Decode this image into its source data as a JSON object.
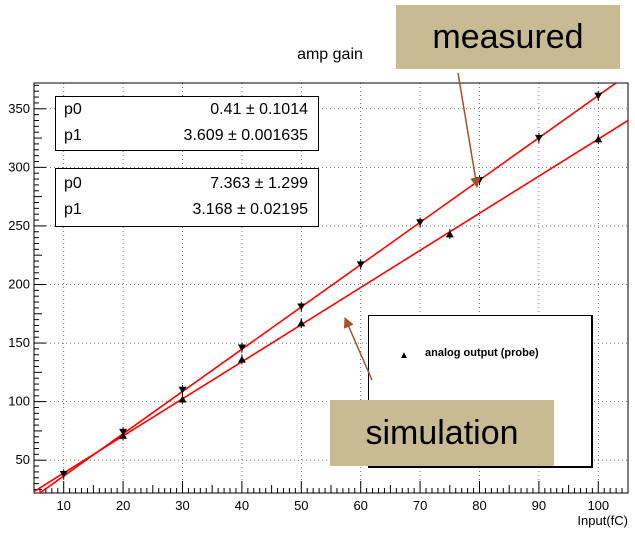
{
  "chart_data": {
    "type": "scatter",
    "title": "amp gain",
    "xlabel": "Input(fC)",
    "ylabel": "",
    "xlim": [
      5,
      105
    ],
    "ylim": [
      22,
      372
    ],
    "x_ticks": [
      10,
      20,
      30,
      40,
      50,
      60,
      70,
      80,
      90,
      100
    ],
    "y_ticks": [
      50,
      100,
      150,
      200,
      250,
      300,
      350
    ],
    "grid": true,
    "legend_position": "center-right",
    "series": [
      {
        "marker": "triangle-down",
        "color": "#000000",
        "points": [
          {
            "x": 10,
            "y": 38
          },
          {
            "x": 20,
            "y": 74
          },
          {
            "x": 30,
            "y": 110
          },
          {
            "x": 40,
            "y": 146
          },
          {
            "x": 50,
            "y": 181
          },
          {
            "x": 60,
            "y": 217
          },
          {
            "x": 70,
            "y": 253
          },
          {
            "x": 80,
            "y": 289
          },
          {
            "x": 90,
            "y": 325
          },
          {
            "x": 100,
            "y": 361
          }
        ],
        "fit": {
          "p0": 0.41,
          "p1": 3.609
        }
      },
      {
        "name": "analog output (probe)",
        "marker": "triangle-up",
        "color": "#000000",
        "points": [
          {
            "x": 20,
            "y": 71
          },
          {
            "x": 30,
            "y": 102
          },
          {
            "x": 40,
            "y": 136
          },
          {
            "x": 50,
            "y": 167
          },
          {
            "x": 75,
            "y": 243
          },
          {
            "x": 100,
            "y": 324
          }
        ],
        "fit": {
          "p0": 7.363,
          "p1": 3.168
        }
      }
    ],
    "fit_color": "#ff0000",
    "stat_boxes": [
      {
        "rows": [
          {
            "name": "p0",
            "value": "0.41 ± 0.1014"
          },
          {
            "name": "p1",
            "value": "3.609 ± 0.001635"
          }
        ]
      },
      {
        "rows": [
          {
            "name": "p0",
            "value": "7.363 ± 1.299"
          },
          {
            "name": "p1",
            "value": "3.168 ± 0.02195"
          }
        ]
      }
    ],
    "annotations": [
      {
        "text": "measured",
        "color": "#c8bb94",
        "arrow_color": "#a0522d"
      },
      {
        "text": "simulation",
        "color": "#c8bb94",
        "arrow_color": "#a0522d"
      }
    ]
  }
}
